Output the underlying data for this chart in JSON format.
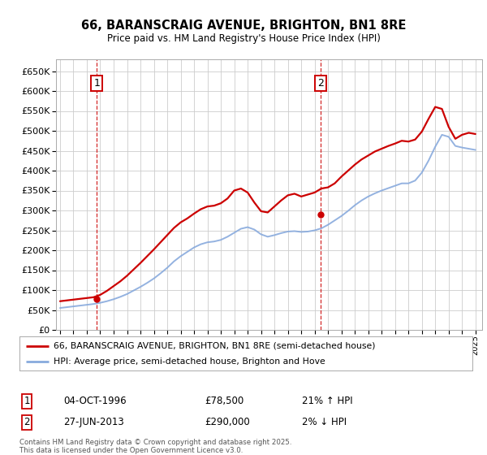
{
  "title": "66, BARANSCRAIG AVENUE, BRIGHTON, BN1 8RE",
  "subtitle": "Price paid vs. HM Land Registry's House Price Index (HPI)",
  "ylim": [
    0,
    680000
  ],
  "sale1_date": 1996.75,
  "sale1_price": 78500,
  "sale2_date": 2013.42,
  "sale2_price": 290000,
  "price_line_color": "#cc0000",
  "hpi_line_color": "#88aadd",
  "sale_marker_color": "#cc0000",
  "vline_color": "#cc0000",
  "background_color": "#ffffff",
  "grid_color": "#cccccc",
  "legend1": "66, BARANSCRAIG AVENUE, BRIGHTON, BN1 8RE (semi-detached house)",
  "legend2": "HPI: Average price, semi-detached house, Brighton and Hove",
  "footnote": "Contains HM Land Registry data © Crown copyright and database right 2025.\nThis data is licensed under the Open Government Licence v3.0.",
  "hpi_x": [
    1994,
    1994.5,
    1995,
    1995.5,
    1996,
    1996.5,
    1997,
    1997.5,
    1998,
    1998.5,
    1999,
    1999.5,
    2000,
    2000.5,
    2001,
    2001.5,
    2002,
    2002.5,
    2003,
    2003.5,
    2004,
    2004.5,
    2005,
    2005.5,
    2006,
    2006.5,
    2007,
    2007.5,
    2008,
    2008.5,
    2009,
    2009.5,
    2010,
    2010.5,
    2011,
    2011.5,
    2012,
    2012.5,
    2013,
    2013.5,
    2014,
    2014.5,
    2015,
    2015.5,
    2016,
    2016.5,
    2017,
    2017.5,
    2018,
    2018.5,
    2019,
    2019.5,
    2020,
    2020.5,
    2021,
    2021.5,
    2022,
    2022.5,
    2023,
    2023.5,
    2024,
    2024.5,
    2025
  ],
  "hpi_y": [
    55000,
    57000,
    59000,
    61000,
    63000,
    65000,
    68000,
    72000,
    77000,
    83000,
    90000,
    99000,
    108000,
    118000,
    129000,
    142000,
    156000,
    172000,
    185000,
    196000,
    207000,
    215000,
    220000,
    222000,
    226000,
    234000,
    244000,
    254000,
    258000,
    252000,
    240000,
    234000,
    238000,
    243000,
    247000,
    248000,
    246000,
    247000,
    250000,
    255000,
    264000,
    275000,
    286000,
    299000,
    313000,
    325000,
    335000,
    343000,
    350000,
    356000,
    362000,
    368000,
    368000,
    375000,
    395000,
    425000,
    460000,
    490000,
    485000,
    462000,
    458000,
    455000,
    452000
  ],
  "price_x": [
    1994,
    1994.5,
    1995,
    1995.5,
    1996,
    1996.5,
    1997,
    1997.5,
    1998,
    1998.5,
    1999,
    1999.5,
    2000,
    2000.5,
    2001,
    2001.5,
    2002,
    2002.5,
    2003,
    2003.5,
    2004,
    2004.5,
    2005,
    2005.5,
    2006,
    2006.5,
    2007,
    2007.5,
    2008,
    2008.5,
    2009,
    2009.5,
    2010,
    2010.5,
    2011,
    2011.5,
    2012,
    2012.5,
    2013,
    2013.5,
    2014,
    2014.5,
    2015,
    2015.5,
    2016,
    2016.5,
    2017,
    2017.5,
    2018,
    2018.5,
    2019,
    2019.5,
    2020,
    2020.5,
    2021,
    2021.5,
    2022,
    2022.5,
    2023,
    2023.5,
    2024,
    2024.5,
    2025
  ],
  "price_y": [
    72000,
    74000,
    76000,
    78000,
    80000,
    82000,
    88000,
    98000,
    110000,
    122000,
    136000,
    152000,
    168000,
    185000,
    202000,
    220000,
    238000,
    256000,
    270000,
    280000,
    292000,
    303000,
    310000,
    312000,
    318000,
    330000,
    350000,
    355000,
    345000,
    320000,
    298000,
    295000,
    310000,
    325000,
    338000,
    342000,
    335000,
    340000,
    345000,
    355000,
    358000,
    368000,
    385000,
    400000,
    415000,
    428000,
    438000,
    448000,
    455000,
    462000,
    468000,
    475000,
    473000,
    478000,
    498000,
    530000,
    560000,
    555000,
    510000,
    480000,
    490000,
    495000,
    492000
  ]
}
